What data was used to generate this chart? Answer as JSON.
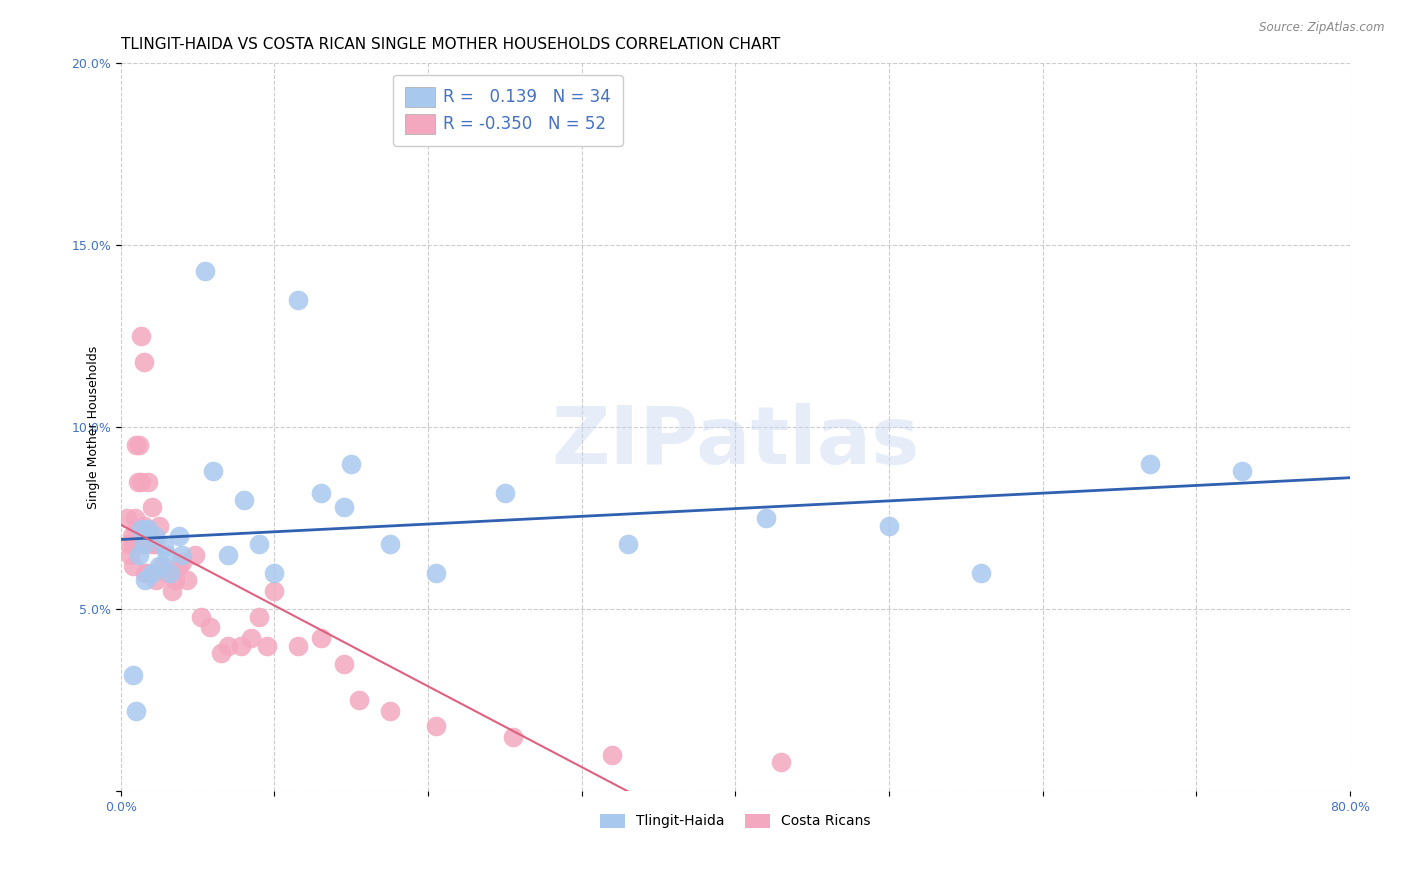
{
  "title": "TLINGIT-HAIDA VS COSTA RICAN SINGLE MOTHER HOUSEHOLDS CORRELATION CHART",
  "source": "Source: ZipAtlas.com",
  "ylabel": "Single Mother Households",
  "xlabel": "",
  "watermark": "ZIPatlas",
  "xlim": [
    0.0,
    0.8
  ],
  "ylim": [
    0.0,
    0.2
  ],
  "xticks": [
    0.0,
    0.1,
    0.2,
    0.3,
    0.4,
    0.5,
    0.6,
    0.7,
    0.8
  ],
  "xticklabels": [
    "0.0%",
    "",
    "",
    "",
    "",
    "",
    "",
    "",
    "80.0%"
  ],
  "yticks": [
    0.0,
    0.05,
    0.1,
    0.15,
    0.2
  ],
  "yticklabels": [
    "",
    "5.0%",
    "10.0%",
    "15.0%",
    "20.0%"
  ],
  "tlingit_color": "#A8C8EE",
  "costa_color": "#F4A8C0",
  "tlingit_line_color": "#3060B0",
  "costa_line_color": "#E06080",
  "R_tlingit": 0.139,
  "N_tlingit": 34,
  "R_costa": -0.35,
  "N_costa": 52,
  "tlingit_x": [
    0.008,
    0.01,
    0.012,
    0.013,
    0.015,
    0.016,
    0.018,
    0.02,
    0.022,
    0.025,
    0.028,
    0.03,
    0.032,
    0.038,
    0.04,
    0.055,
    0.06,
    0.07,
    0.08,
    0.09,
    0.1,
    0.115,
    0.13,
    0.145,
    0.15,
    0.175,
    0.205,
    0.25,
    0.33,
    0.42,
    0.5,
    0.56,
    0.67,
    0.73
  ],
  "tlingit_y": [
    0.032,
    0.022,
    0.065,
    0.072,
    0.068,
    0.058,
    0.072,
    0.06,
    0.07,
    0.062,
    0.067,
    0.065,
    0.06,
    0.07,
    0.065,
    0.143,
    0.088,
    0.065,
    0.08,
    0.068,
    0.06,
    0.135,
    0.082,
    0.078,
    0.09,
    0.068,
    0.06,
    0.082,
    0.068,
    0.075,
    0.073,
    0.06,
    0.09,
    0.088
  ],
  "costa_x": [
    0.004,
    0.005,
    0.006,
    0.007,
    0.008,
    0.008,
    0.009,
    0.01,
    0.01,
    0.01,
    0.011,
    0.012,
    0.012,
    0.013,
    0.013,
    0.014,
    0.015,
    0.015,
    0.016,
    0.017,
    0.018,
    0.02,
    0.02,
    0.022,
    0.023,
    0.025,
    0.027,
    0.03,
    0.033,
    0.035,
    0.038,
    0.04,
    0.043,
    0.048,
    0.052,
    0.058,
    0.065,
    0.07,
    0.078,
    0.085,
    0.09,
    0.095,
    0.1,
    0.115,
    0.13,
    0.145,
    0.155,
    0.175,
    0.205,
    0.255,
    0.32,
    0.43
  ],
  "costa_y": [
    0.075,
    0.068,
    0.065,
    0.07,
    0.068,
    0.062,
    0.075,
    0.072,
    0.068,
    0.095,
    0.085,
    0.072,
    0.095,
    0.085,
    0.125,
    0.068,
    0.118,
    0.073,
    0.06,
    0.06,
    0.085,
    0.068,
    0.078,
    0.068,
    0.058,
    0.073,
    0.062,
    0.06,
    0.055,
    0.058,
    0.062,
    0.063,
    0.058,
    0.065,
    0.048,
    0.045,
    0.038,
    0.04,
    0.04,
    0.042,
    0.048,
    0.04,
    0.055,
    0.04,
    0.042,
    0.035,
    0.025,
    0.022,
    0.018,
    0.015,
    0.01,
    0.008
  ],
  "title_fontsize": 11,
  "axis_label_fontsize": 9,
  "tick_label_fontsize": 9,
  "tick_label_color": "#4472C4",
  "legend_text_color": "#4472C4",
  "grid_color": "#CCCCCC",
  "background_color": "#FFFFFF",
  "costa_line_x_end": 0.46
}
